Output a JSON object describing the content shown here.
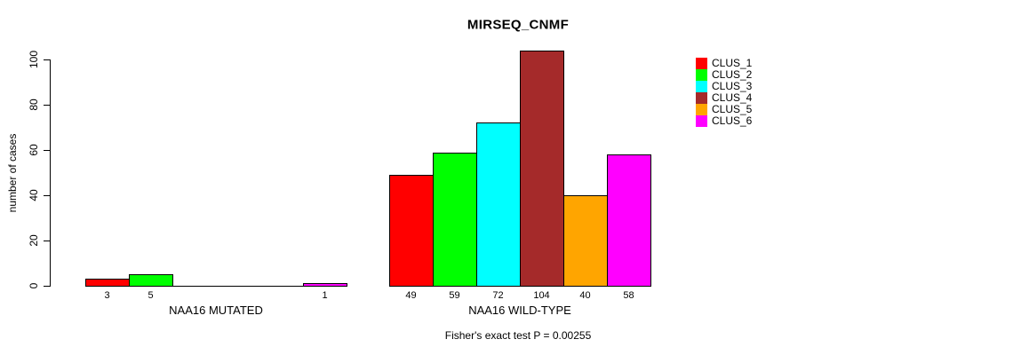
{
  "title": "MIRSEQ_CNMF",
  "footer": "Fisher's exact test P = 0.00255",
  "y_axis": {
    "label": "number of cases"
  },
  "legend": {
    "position": "right",
    "items": [
      {
        "label": "CLUS_1",
        "color": "#FF0000"
      },
      {
        "label": "CLUS_2",
        "color": "#00FF00"
      },
      {
        "label": "CLUS_3",
        "color": "#00FFFF"
      },
      {
        "label": "CLUS_4",
        "color": "#A52A2A"
      },
      {
        "label": "CLUS_5",
        "color": "#FFA500"
      },
      {
        "label": "CLUS_6",
        "color": "#FF00FF"
      }
    ]
  },
  "chart_data": {
    "type": "bar",
    "title": "MIRSEQ_CNMF",
    "ylabel": "number of cases",
    "ylim": [
      0,
      100
    ],
    "yticks": [
      0,
      20,
      40,
      60,
      80,
      100
    ],
    "grid": false,
    "legend_position": "right",
    "categories": [
      "CLUS_1",
      "CLUS_2",
      "CLUS_3",
      "CLUS_4",
      "CLUS_5",
      "CLUS_6"
    ],
    "colors": [
      "#FF0000",
      "#00FF00",
      "#00FFFF",
      "#A52A2A",
      "#FFA500",
      "#FF00FF"
    ],
    "groups": [
      {
        "label": "NAA16 MUTATED",
        "values": [
          3,
          5,
          0,
          0,
          0,
          1
        ]
      },
      {
        "label": "NAA16 WILD-TYPE",
        "values": [
          49,
          59,
          72,
          104,
          40,
          58
        ]
      }
    ],
    "annotation": "Fisher's exact test P = 0.00255"
  }
}
